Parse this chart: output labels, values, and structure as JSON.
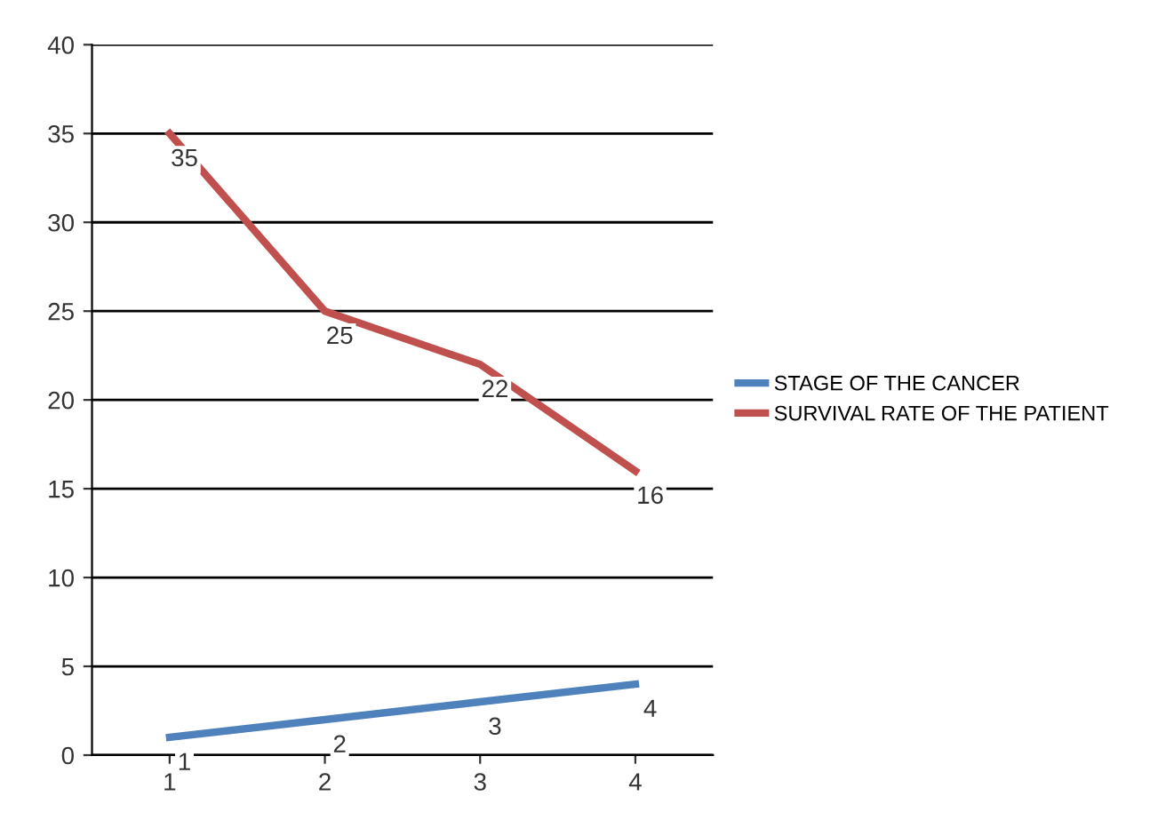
{
  "chart_data": {
    "type": "line",
    "categories": [
      "1",
      "2",
      "3",
      "4"
    ],
    "series": [
      {
        "name": "STAGE OF THE CANCER",
        "color": "#4f81bd",
        "values": [
          1,
          2,
          3,
          4
        ]
      },
      {
        "name": "SURVIVAL RATE OF THE PATIENT",
        "color": "#c0504d",
        "values": [
          35,
          25,
          22,
          16
        ]
      }
    ],
    "ylim": [
      0,
      40
    ],
    "yticks": [
      0,
      5,
      10,
      15,
      20,
      25,
      30,
      35,
      40
    ],
    "grid": "y",
    "legend": "right",
    "data_labels": true,
    "marker": "none",
    "line_style": "solid"
  }
}
